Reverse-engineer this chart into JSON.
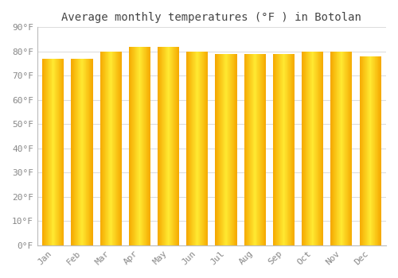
{
  "title": "Average monthly temperatures (°F ) in Botolan",
  "months": [
    "Jan",
    "Feb",
    "Mar",
    "Apr",
    "May",
    "Jun",
    "Jul",
    "Aug",
    "Sep",
    "Oct",
    "Nov",
    "Dec"
  ],
  "values": [
    77,
    77,
    80,
    82,
    82,
    80,
    79,
    79,
    79,
    80,
    80,
    78
  ],
  "ylim": [
    0,
    90
  ],
  "yticks": [
    0,
    10,
    20,
    30,
    40,
    50,
    60,
    70,
    80,
    90
  ],
  "ytick_labels": [
    "0°F",
    "10°F",
    "20°F",
    "30°F",
    "40°F",
    "50°F",
    "60°F",
    "70°F",
    "80°F",
    "90°F"
  ],
  "bar_color_center": "#FFCC44",
  "bar_color_edge": "#F5A800",
  "background_color": "#FFFFFF",
  "grid_color": "#DDDDDD",
  "title_fontsize": 10,
  "tick_fontsize": 8,
  "bar_width": 0.75,
  "bar_gap": 0.05
}
